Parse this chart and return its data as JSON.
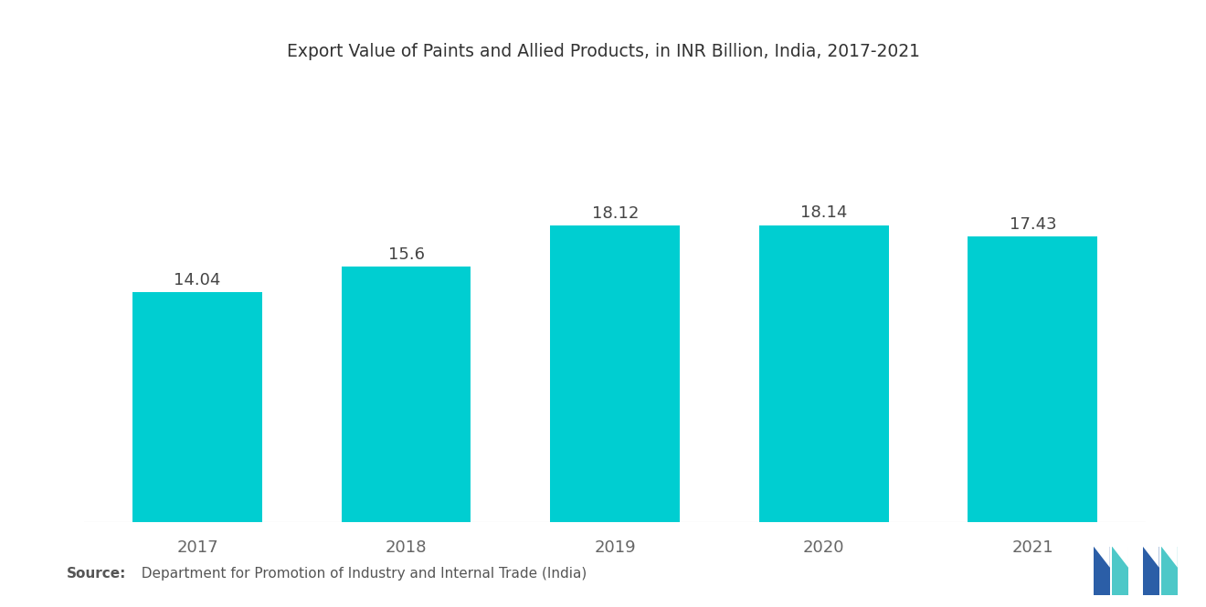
{
  "title": "Export Value of Paints and Allied Products, in INR Billion, India, 2017-2021",
  "categories": [
    "2017",
    "2018",
    "2019",
    "2020",
    "2021"
  ],
  "values": [
    14.04,
    15.6,
    18.12,
    18.14,
    17.43
  ],
  "bar_color": "#00CED1",
  "background_color": "#FFFFFF",
  "label_fontsize": 13,
  "title_fontsize": 13.5,
  "tick_fontsize": 13,
  "source_bold": "Source:",
  "source_normal": "  Department for Promotion of Industry and Internal Trade (India)",
  "ylim": [
    0,
    23
  ],
  "bar_width": 0.62,
  "logo_blue": "#2B5EA7",
  "logo_teal": "#4DC8C8"
}
